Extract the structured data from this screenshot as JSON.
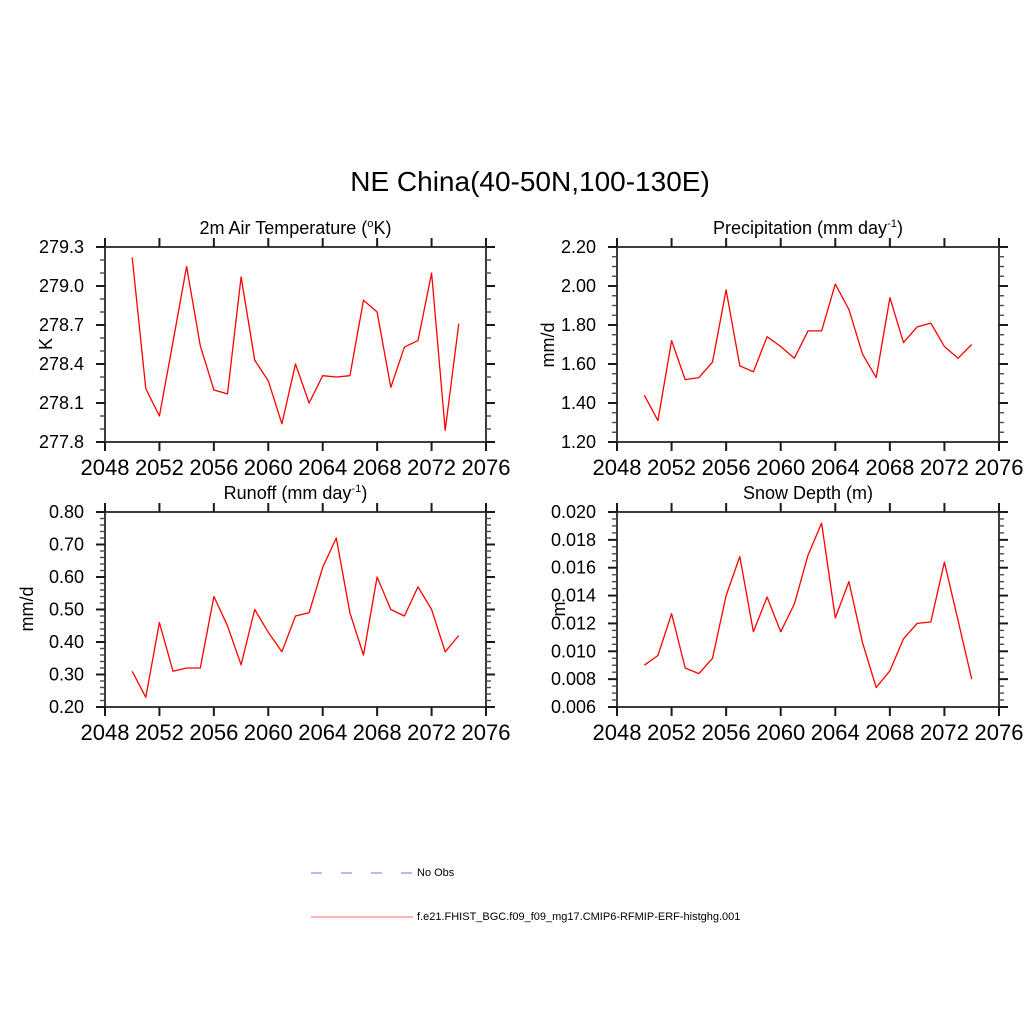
{
  "figure_title": "NE China(40-50N,100-130E)",
  "series_color": "#ff0000",
  "axis_color": "#3c3c3c",
  "tick_color": "#1a1a1a",
  "legend": {
    "items": [
      {
        "label": "No Obs",
        "line_style": "dashed",
        "color": "#a3a3de"
      },
      {
        "label": "f.e21.FHIST_BGC.f09_f09_mg17.CMIP6-RFMIP-ERF-histghg.001",
        "line_style": "solid",
        "color": "#ff9d9d"
      }
    ]
  },
  "years": [
    2050,
    2051,
    2052,
    2053,
    2054,
    2055,
    2056,
    2057,
    2058,
    2059,
    2060,
    2061,
    2062,
    2063,
    2064,
    2065,
    2066,
    2067,
    2068,
    2069,
    2070,
    2071,
    2072,
    2073,
    2074
  ],
  "chart_data": [
    {
      "type": "line",
      "position": "top-left",
      "title_parts": {
        "pre": "2m Air Temperature (",
        "sup": "o",
        "post": "K)"
      },
      "ylabel": "K",
      "xlim": [
        2048,
        2076
      ],
      "xticks": [
        2048,
        2052,
        2056,
        2060,
        2064,
        2068,
        2072,
        2076
      ],
      "yticks": [
        277.8,
        278.1,
        278.4,
        278.7,
        279.0,
        279.3
      ],
      "ytick_labels": [
        "277.8",
        "278.1",
        "278.4",
        "278.7",
        "279.0",
        "279.3"
      ],
      "yminor_step": 0.1,
      "values": [
        279.22,
        278.21,
        278.0,
        278.57,
        279.15,
        278.54,
        278.2,
        278.17,
        279.07,
        278.43,
        278.27,
        277.94,
        278.4,
        278.1,
        278.31,
        278.3,
        278.31,
        278.89,
        278.8,
        278.22,
        278.53,
        278.58,
        279.1,
        277.89,
        278.71
      ]
    },
    {
      "type": "line",
      "position": "top-right",
      "title_parts": {
        "pre": "Precipitation (mm day",
        "sup": "-1",
        "post": ")"
      },
      "ylabel": "mm/d",
      "xlim": [
        2048,
        2076
      ],
      "xticks": [
        2048,
        2052,
        2056,
        2060,
        2064,
        2068,
        2072,
        2076
      ],
      "yticks": [
        1.2,
        1.4,
        1.6,
        1.8,
        2.0,
        2.2
      ],
      "ytick_labels": [
        "1.20",
        "1.40",
        "1.60",
        "1.80",
        "2.00",
        "2.20"
      ],
      "yminor_step": 0.05,
      "values": [
        1.44,
        1.31,
        1.72,
        1.52,
        1.53,
        1.61,
        1.98,
        1.59,
        1.56,
        1.74,
        1.69,
        1.63,
        1.77,
        1.77,
        2.01,
        1.88,
        1.65,
        1.53,
        1.94,
        1.71,
        1.79,
        1.81,
        1.69,
        1.63,
        1.7
      ]
    },
    {
      "type": "line",
      "position": "bottom-left",
      "title_parts": {
        "pre": "Runoff (mm day",
        "sup": "-1",
        "post": ")"
      },
      "ylabel": "mm/d",
      "xlim": [
        2048,
        2076
      ],
      "xticks": [
        2048,
        2052,
        2056,
        2060,
        2064,
        2068,
        2072,
        2076
      ],
      "yticks": [
        0.2,
        0.3,
        0.4,
        0.5,
        0.6,
        0.7,
        0.8
      ],
      "ytick_labels": [
        "0.20",
        "0.30",
        "0.40",
        "0.50",
        "0.60",
        "0.70",
        "0.80"
      ],
      "yminor_step": 0.02,
      "values": [
        0.31,
        0.23,
        0.46,
        0.31,
        0.32,
        0.32,
        0.54,
        0.45,
        0.33,
        0.5,
        0.43,
        0.37,
        0.48,
        0.49,
        0.63,
        0.72,
        0.49,
        0.36,
        0.6,
        0.5,
        0.48,
        0.57,
        0.5,
        0.37,
        0.42
      ]
    },
    {
      "type": "line",
      "position": "bottom-right",
      "title_parts": {
        "pre": "Snow Depth (m)",
        "sup": "",
        "post": ""
      },
      "ylabel": "m",
      "xlim": [
        2048,
        2076
      ],
      "xticks": [
        2048,
        2052,
        2056,
        2060,
        2064,
        2068,
        2072,
        2076
      ],
      "yticks": [
        0.006,
        0.008,
        0.01,
        0.012,
        0.014,
        0.016,
        0.018,
        0.02
      ],
      "ytick_labels": [
        "0.006",
        "0.008",
        "0.010",
        "0.012",
        "0.014",
        "0.016",
        "0.018",
        "0.020"
      ],
      "yminor_step": 0.0005,
      "values": [
        0.009,
        0.0097,
        0.0127,
        0.0088,
        0.0084,
        0.0095,
        0.014,
        0.0168,
        0.0114,
        0.0139,
        0.0114,
        0.0134,
        0.0169,
        0.0192,
        0.0124,
        0.015,
        0.0106,
        0.0074,
        0.0086,
        0.0109,
        0.012,
        0.0121,
        0.0164,
        0.0122,
        0.008
      ]
    }
  ]
}
